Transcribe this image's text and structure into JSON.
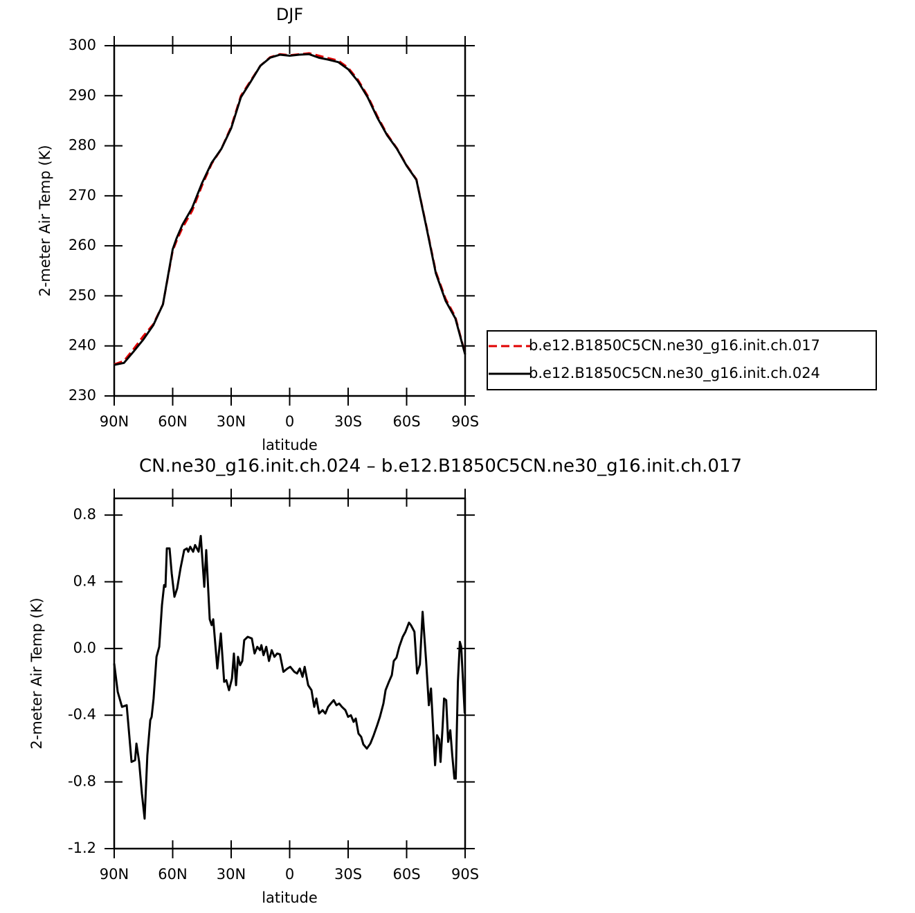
{
  "chart_data": [
    {
      "type": "line",
      "title": "DJF",
      "xlabel": "latitude",
      "ylabel": "2-meter Air Temp (K)",
      "x": [
        90,
        85,
        80,
        75,
        70,
        65,
        60,
        58,
        55,
        50,
        45,
        40,
        35,
        30,
        25,
        20,
        15,
        10,
        5,
        0,
        -5,
        -10,
        -15,
        -20,
        -25,
        -30,
        -35,
        -40,
        -45,
        -50,
        -55,
        -60,
        -65,
        -70,
        -75,
        -80,
        -85,
        -90
      ],
      "series": [
        {
          "name": "b.e12.B1850C5CN.ne30_g16.init.ch.017",
          "color": "#e00000",
          "dash": true,
          "values": [
            236.3,
            237.0,
            239.4,
            242.0,
            244.3,
            248.3,
            259.0,
            261.0,
            263.6,
            267.0,
            272.0,
            276.4,
            279.4,
            283.8,
            290.0,
            293.0,
            296.0,
            297.7,
            298.3,
            298.1,
            298.3,
            298.5,
            298.0,
            297.5,
            297.0,
            295.6,
            293.2,
            290.0,
            285.9,
            282.3,
            279.5,
            276.1,
            273.3,
            264.2,
            254.8,
            249.4,
            245.8,
            238.4
          ]
        },
        {
          "name": "b.e12.B1850C5CN.ne30_g16.init.ch.024",
          "color": "#000000",
          "dash": false,
          "values": [
            236.2,
            236.6,
            238.9,
            241.3,
            244.1,
            248.3,
            259.3,
            261.5,
            264.2,
            267.6,
            272.5,
            276.6,
            279.4,
            283.5,
            289.7,
            292.8,
            296.0,
            297.6,
            298.2,
            298.0,
            298.2,
            298.3,
            297.6,
            297.2,
            296.7,
            295.3,
            292.9,
            289.7,
            285.6,
            282.1,
            279.4,
            276.0,
            273.2,
            264.0,
            254.5,
            249.0,
            245.5,
            238.3
          ]
        }
      ],
      "xlim": [
        90,
        -90
      ],
      "xticks": [
        {
          "value": 90,
          "label": "90N"
        },
        {
          "value": 60,
          "label": "60N"
        },
        {
          "value": 30,
          "label": "30N"
        },
        0,
        {
          "value": -30,
          "label": "30S"
        },
        {
          "value": -60,
          "label": "60S"
        },
        {
          "value": -90,
          "label": "90S"
        }
      ],
      "ylim": [
        230,
        300
      ],
      "yticks": [
        230,
        240,
        250,
        260,
        270,
        280,
        290,
        300
      ],
      "legend": "right"
    },
    {
      "type": "line",
      "title": "CN.ne30_g16.init.ch.024 – b.e12.B1850C5CN.ne30_g16.init.ch.017",
      "xlabel": "latitude",
      "ylabel": "2-meter Air Temp (K)",
      "x": [
        90,
        88.2,
        86,
        83.6,
        81.1,
        79.3,
        78.6,
        77.2,
        75.8,
        74.4,
        73,
        71.5,
        70.8,
        69.8,
        68.3,
        66.9,
        65.5,
        64.4,
        63.7,
        63,
        61.6,
        60.5,
        59.1,
        57.7,
        56,
        54.1,
        52.7,
        52,
        51,
        49.5,
        48.5,
        46.7,
        45.6,
        43.8,
        42.8,
        41,
        40,
        39.2,
        37.1,
        35.3,
        33.6,
        32.5,
        31.1,
        29.6,
        28.6,
        27.5,
        26.5,
        25.4,
        24.3,
        23.3,
        21.5,
        19.4,
        18,
        16.6,
        15.2,
        14.5,
        13.4,
        12,
        10.6,
        9.2,
        7.8,
        6.4,
        5,
        3.2,
        1.1,
        -0.3,
        -2.4,
        -3.8,
        -5.2,
        -6.6,
        -7.7,
        -9.5,
        -11.2,
        -12.6,
        -13.7,
        -15.1,
        -16.9,
        -18.3,
        -19.7,
        -21.1,
        -22.6,
        -24,
        -25.4,
        -26.8,
        -28.6,
        -30,
        -31.4,
        -32.8,
        -33.9,
        -35.3,
        -36.7,
        -37.8,
        -39.6,
        -41.4,
        -43.1,
        -44.9,
        -46.3,
        -48.1,
        -49.2,
        -50.9,
        -52.4,
        -53.4,
        -54.8,
        -56.2,
        -58,
        -59.4,
        -61.2,
        -62.2,
        -64,
        -65.4,
        -66.8,
        -68.2,
        -70,
        -71.4,
        -72.5,
        -74.6,
        -75.6,
        -76.7,
        -77.4,
        -78.5,
        -79.2,
        -80.3,
        -81.3,
        -82.4,
        -83.4,
        -84.5,
        -85.2,
        -86.3,
        -87.3,
        -88,
        -89.8
      ],
      "series": [
        {
          "name": null,
          "color": "#000000",
          "dash": false,
          "values": [
            -0.09,
            -0.26,
            -0.35,
            -0.34,
            -0.68,
            -0.67,
            -0.57,
            -0.68,
            -0.87,
            -1.02,
            -0.64,
            -0.43,
            -0.41,
            -0.3,
            -0.05,
            0.01,
            0.26,
            0.38,
            0.37,
            0.6,
            0.6,
            0.45,
            0.31,
            0.36,
            0.48,
            0.59,
            0.6,
            0.58,
            0.61,
            0.58,
            0.62,
            0.58,
            0.675,
            0.37,
            0.59,
            0.175,
            0.14,
            0.175,
            -0.12,
            0.09,
            -0.2,
            -0.19,
            -0.25,
            -0.18,
            -0.03,
            -0.22,
            -0.05,
            -0.1,
            -0.075,
            0.05,
            0.07,
            0.06,
            -0.03,
            0.01,
            -0.01,
            0.02,
            -0.04,
            0.01,
            -0.075,
            -0.01,
            -0.05,
            -0.03,
            -0.035,
            -0.14,
            -0.12,
            -0.11,
            -0.14,
            -0.15,
            -0.12,
            -0.17,
            -0.11,
            -0.22,
            -0.25,
            -0.35,
            -0.3,
            -0.39,
            -0.37,
            -0.39,
            -0.35,
            -0.33,
            -0.31,
            -0.34,
            -0.33,
            -0.35,
            -0.37,
            -0.41,
            -0.4,
            -0.44,
            -0.42,
            -0.51,
            -0.53,
            -0.575,
            -0.6,
            -0.57,
            -0.52,
            -0.46,
            -0.41,
            -0.33,
            -0.25,
            -0.2,
            -0.16,
            -0.075,
            -0.055,
            0.01,
            0.07,
            0.1,
            0.155,
            0.14,
            0.1,
            -0.15,
            -0.095,
            0.22,
            -0.075,
            -0.34,
            -0.24,
            -0.7,
            -0.52,
            -0.545,
            -0.68,
            -0.46,
            -0.3,
            -0.31,
            -0.56,
            -0.49,
            -0.64,
            -0.78,
            -0.78,
            -0.2,
            0.04,
            0.01,
            -0.39
          ]
        }
      ],
      "xlim": [
        90,
        -90
      ],
      "xticks": [
        {
          "value": 90,
          "label": "90N"
        },
        {
          "value": 60,
          "label": "60N"
        },
        {
          "value": 30,
          "label": "30N"
        },
        0,
        {
          "value": -30,
          "label": "30S"
        },
        {
          "value": -60,
          "label": "60S"
        },
        {
          "value": -90,
          "label": "90S"
        }
      ],
      "ylim": [
        -1.2,
        0.9
      ],
      "yticks": [
        -1.2,
        -0.8,
        -0.4,
        {
          "value": 0,
          "label": "0.0"
        },
        0.4,
        0.8
      ]
    }
  ]
}
